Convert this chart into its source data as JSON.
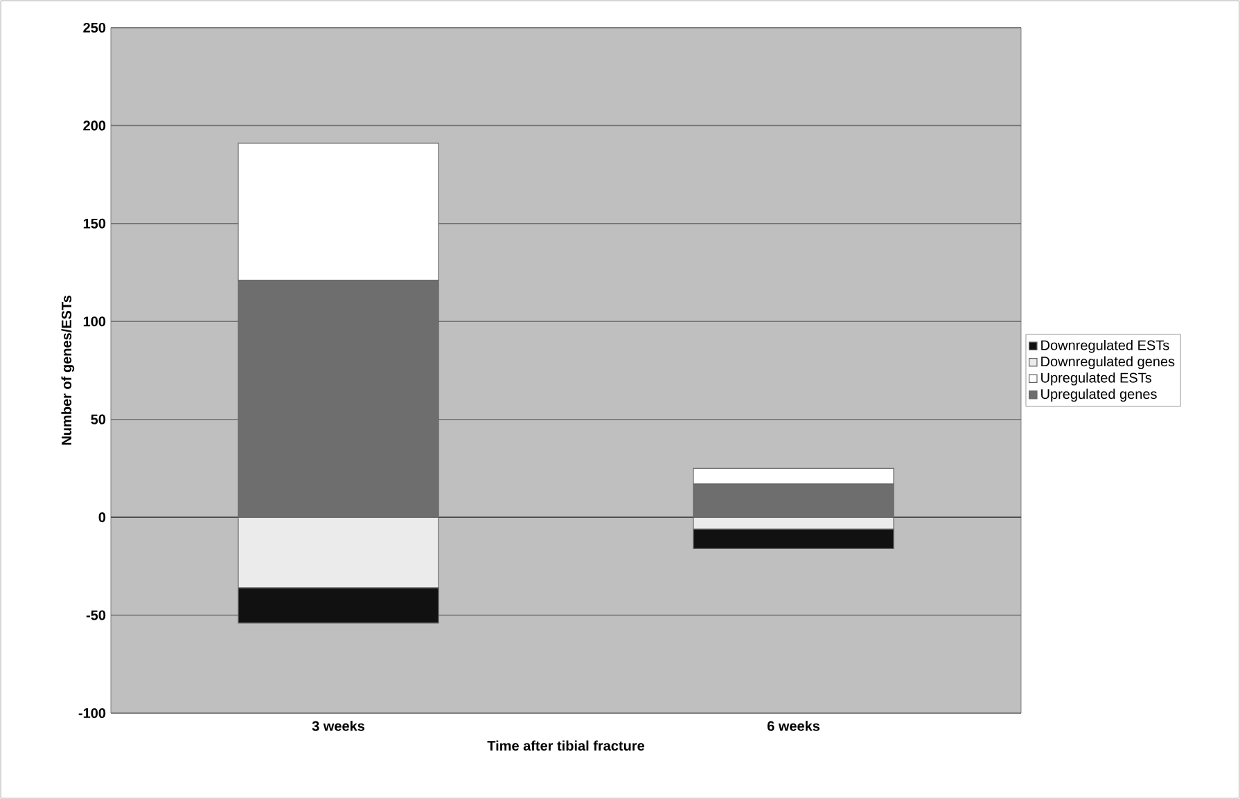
{
  "chart_data": {
    "type": "bar",
    "stacked": true,
    "xlabel": "Time after tibial fracture",
    "ylabel": "Number of genes/ESTs",
    "categories": [
      "3 weeks",
      "6 weeks"
    ],
    "series": [
      {
        "name": "Upregulated genes",
        "color": "#6e6e6e",
        "values": [
          121,
          17
        ]
      },
      {
        "name": "Upregulated ESTs",
        "color": "#ffffff",
        "values": [
          70,
          8
        ]
      },
      {
        "name": "Downregulated genes",
        "color": "#ebebeb",
        "values": [
          -36,
          -6
        ]
      },
      {
        "name": "Downregulated ESTs",
        "color": "#111111",
        "values": [
          -18,
          -10
        ]
      }
    ],
    "ylim": [
      -100,
      250
    ],
    "yticks": [
      -100,
      -50,
      0,
      50,
      100,
      150,
      200,
      250
    ],
    "grid": "y",
    "legend": "right"
  }
}
